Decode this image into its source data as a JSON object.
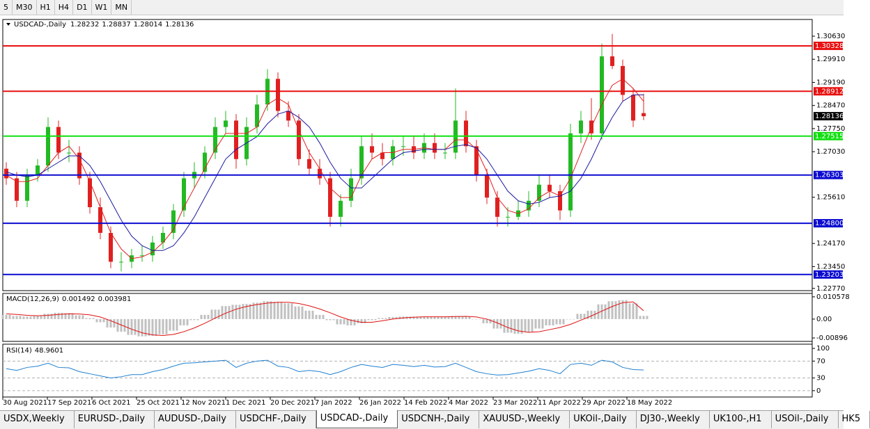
{
  "toolbar": {
    "timeframes": [
      "5",
      "M30",
      "H1",
      "H4",
      "D1",
      "W1",
      "MN"
    ]
  },
  "tabs": [
    "USDX,Weekly",
    "EURUSD-,Daily",
    "AUDUSD-,Daily",
    "USDCHF-,Daily",
    "USDCAD-,Daily",
    "USDCNH-,Daily",
    "XAUUSD-,Weekly",
    "UKOil-,Daily",
    "DJ30-,Weekly",
    "UK100-,H1",
    "USOil-,Daily",
    "HK5"
  ],
  "active_tab": 4,
  "chart_data": [
    {
      "type": "candlestick",
      "title": "USDCAD-,Daily",
      "header_values": [
        1.28232,
        1.28837,
        1.28014,
        1.28136
      ],
      "date_labels": [
        "30 Aug 2021",
        "17 Sep 2021",
        "6 Oct 2021",
        "25 Oct 2021",
        "12 Nov 2021",
        "1 Dec 2021",
        "20 Dec 2021",
        "7 Jan 2022",
        "26 Jan 2022",
        "14 Feb 2022",
        "4 Mar 2022",
        "23 Mar 2022",
        "11 Apr 2022",
        "29 Apr 2022",
        "18 May 2022"
      ],
      "up_color": "#22b922",
      "down_color": "#e02020",
      "open": [
        1.265,
        1.262,
        1.255,
        1.263,
        1.266,
        1.278,
        1.27,
        1.27,
        1.262,
        1.253,
        1.245,
        1.236,
        1.236,
        1.238,
        1.238,
        1.242,
        1.245,
        1.252,
        1.262,
        1.264,
        1.27,
        1.278,
        1.28,
        1.268,
        1.278,
        1.285,
        1.293,
        1.283,
        1.28,
        1.268,
        1.265,
        1.262,
        1.25,
        1.255,
        1.262,
        1.272,
        1.27,
        1.268,
        1.272,
        1.272,
        1.27,
        1.273,
        1.27,
        1.27,
        1.28,
        1.272,
        1.263,
        1.256,
        1.25,
        1.25,
        1.252,
        1.255,
        1.26,
        1.258,
        1.252,
        1.276,
        1.28,
        1.276,
        1.3,
        1.297,
        1.288,
        1.28232
      ],
      "high": [
        1.267,
        1.264,
        1.265,
        1.268,
        1.281,
        1.28,
        1.274,
        1.272,
        1.264,
        1.256,
        1.247,
        1.239,
        1.24,
        1.241,
        1.244,
        1.247,
        1.254,
        1.264,
        1.267,
        1.272,
        1.281,
        1.283,
        1.282,
        1.281,
        1.288,
        1.296,
        1.295,
        1.286,
        1.282,
        1.271,
        1.268,
        1.264,
        1.257,
        1.265,
        1.275,
        1.276,
        1.273,
        1.274,
        1.275,
        1.275,
        1.276,
        1.276,
        1.273,
        1.29,
        1.283,
        1.274,
        1.265,
        1.258,
        1.253,
        1.255,
        1.258,
        1.263,
        1.263,
        1.26,
        1.279,
        1.283,
        1.287,
        1.304,
        1.307,
        1.299,
        1.29,
        1.28837
      ],
      "low": [
        1.26,
        1.253,
        1.253,
        1.261,
        1.264,
        1.268,
        1.267,
        1.26,
        1.251,
        1.243,
        1.234,
        1.233,
        1.234,
        1.236,
        1.236,
        1.24,
        1.243,
        1.25,
        1.259,
        1.262,
        1.268,
        1.276,
        1.265,
        1.266,
        1.276,
        1.283,
        1.281,
        1.278,
        1.266,
        1.263,
        1.26,
        1.247,
        1.247,
        1.253,
        1.26,
        1.268,
        1.266,
        1.266,
        1.269,
        1.268,
        1.268,
        1.268,
        1.268,
        1.268,
        1.27,
        1.261,
        1.254,
        1.247,
        1.247,
        1.249,
        1.25,
        1.253,
        1.256,
        1.249,
        1.25,
        1.273,
        1.274,
        1.274,
        1.296,
        1.286,
        1.278,
        1.28014
      ],
      "close": [
        1.262,
        1.255,
        1.263,
        1.266,
        1.278,
        1.27,
        1.27,
        1.262,
        1.253,
        1.245,
        1.236,
        1.236,
        1.238,
        1.238,
        1.242,
        1.245,
        1.252,
        1.262,
        1.264,
        1.27,
        1.278,
        1.28,
        1.268,
        1.278,
        1.285,
        1.293,
        1.283,
        1.28,
        1.268,
        1.265,
        1.262,
        1.25,
        1.255,
        1.262,
        1.272,
        1.27,
        1.268,
        1.272,
        1.272,
        1.27,
        1.273,
        1.27,
        1.27,
        1.28,
        1.272,
        1.263,
        1.256,
        1.25,
        1.25,
        1.252,
        1.255,
        1.26,
        1.258,
        1.252,
        1.276,
        1.28,
        1.276,
        1.3,
        1.297,
        1.288,
        1.28,
        1.28136
      ],
      "series": [
        {
          "color": "#e02020",
          "values": [
            1.263,
            1.261,
            1.261,
            1.262,
            1.266,
            1.27,
            1.272,
            1.268,
            1.261,
            1.253,
            1.245,
            1.24,
            1.237,
            1.2375,
            1.239,
            1.242,
            1.246,
            1.253,
            1.259,
            1.265,
            1.271,
            1.276,
            1.276,
            1.276,
            1.278,
            1.285,
            1.287,
            1.285,
            1.277,
            1.27,
            1.265,
            1.259,
            1.256,
            1.256,
            1.263,
            1.268,
            1.27,
            1.27,
            1.271,
            1.271,
            1.2715,
            1.271,
            1.271,
            1.274,
            1.274,
            1.271,
            1.264,
            1.256,
            1.252,
            1.251,
            1.2525,
            1.256,
            1.258,
            1.2565,
            1.262,
            1.27,
            1.278,
            1.285,
            1.291,
            1.293,
            1.29,
            1.286
          ]
        },
        {
          "color": "#1a1aa0",
          "values": [
            1.264,
            1.263,
            1.2625,
            1.263,
            1.265,
            1.267,
            1.269,
            1.269,
            1.266,
            1.261,
            1.255,
            1.249,
            1.244,
            1.241,
            1.2395,
            1.2395,
            1.241,
            1.245,
            1.25,
            1.256,
            1.262,
            1.268,
            1.271,
            1.273,
            1.275,
            1.279,
            1.282,
            1.283,
            1.281,
            1.278,
            1.273,
            1.267,
            1.262,
            1.259,
            1.259,
            1.262,
            1.265,
            1.268,
            1.27,
            1.2705,
            1.271,
            1.271,
            1.271,
            1.272,
            1.2725,
            1.2715,
            1.268,
            1.263,
            1.258,
            1.255,
            1.254,
            1.2545,
            1.256,
            1.2565,
            1.258,
            1.262,
            1.268,
            1.275,
            1.281,
            1.286,
            1.288,
            1.288
          ]
        }
      ],
      "levels": [
        {
          "value": 1.30328,
          "color": "#e81010"
        },
        {
          "value": 1.28912,
          "color": "#e81010"
        },
        {
          "value": 1.27515,
          "color": "#10e010"
        },
        {
          "value": 1.26303,
          "color": "#0a0ad0"
        },
        {
          "value": {
            "value": 1.248,
            "label": "1.24800"
          },
          "color": "#0a0ad0"
        },
        {
          "value": 1.23203,
          "color": "#0a0ad0"
        }
      ],
      "last_price": 1.28136,
      "ylim": [
        1.227,
        1.3115
      ],
      "yticks": [
        {
          "value": 1.3063,
          "label": "1.30630"
        },
        {
          "value": 1.2991,
          "label": "1.29910"
        },
        {
          "value": 1.2919,
          "label": "1.29190"
        },
        {
          "value": 1.2847,
          "label": "1.28470"
        },
        {
          "value": 1.2775,
          "label": "1.27750"
        },
        {
          "value": 1.2703,
          "label": "1.27030"
        },
        {
          "value": 1.2561,
          "label": "1.25610"
        },
        {
          "value": 1.2417,
          "label": "1.24170"
        },
        {
          "value": 1.2345,
          "label": "1.23450"
        },
        {
          "value": 1.2277,
          "label": "1.22770"
        }
      ]
    },
    {
      "type": "macd",
      "title": "MACD(12,26,9)",
      "readout": [
        0.001492,
        0.003981
      ],
      "series": [
        {
          "color": "#c0c0c0",
          "values": [
            0.002,
            0.0015,
            0.0012,
            0.0015,
            0.0025,
            0.003,
            0.0028,
            0.0018,
            0.0005,
            -0.0015,
            -0.004,
            -0.006,
            -0.0075,
            -0.0082,
            -0.008,
            -0.0072,
            -0.0055,
            -0.003,
            -0.0005,
            0.002,
            0.0045,
            0.0062,
            0.0068,
            0.0072,
            0.0078,
            0.0085,
            0.0082,
            0.0075,
            0.006,
            0.004,
            0.002,
            -0.0005,
            -0.0025,
            -0.003,
            -0.002,
            -0.0005,
            0.0005,
            0.001,
            0.0012,
            0.0012,
            0.0012,
            0.001,
            0.001,
            0.0015,
            0.0012,
            0.0,
            -0.002,
            -0.0045,
            -0.0065,
            -0.007,
            -0.0062,
            -0.0045,
            -0.003,
            -0.0025,
            0.0,
            0.0025,
            0.004,
            0.007,
            0.0085,
            0.009,
            0.0075,
            0.0015
          ]
        },
        {
          "color": "#e01010",
          "values": [
            0.0025,
            0.0022,
            0.0018,
            0.0016,
            0.0018,
            0.0022,
            0.0025,
            0.0024,
            0.002,
            0.001,
            -0.0008,
            -0.0028,
            -0.0048,
            -0.0065,
            -0.0075,
            -0.0078,
            -0.0073,
            -0.006,
            -0.0042,
            -0.002,
            0.0005,
            0.0028,
            0.0047,
            0.006,
            0.0069,
            0.0076,
            0.008,
            0.008,
            0.0074,
            0.0063,
            0.0048,
            0.003,
            0.001,
            -0.0006,
            -0.0015,
            -0.0015,
            -0.0008,
            0.0,
            0.0006,
            0.0009,
            0.0011,
            0.0011,
            0.0011,
            0.0012,
            0.0013,
            0.001,
            0.0,
            -0.0018,
            -0.004,
            -0.0056,
            -0.0063,
            -0.006,
            -0.005,
            -0.004,
            -0.0025,
            -0.0005,
            0.0015,
            0.0038,
            0.006,
            0.0078,
            0.0082,
            0.004
          ]
        }
      ],
      "ylim": [
        -0.0106,
        0.0122
      ],
      "yticks": [
        0.010578,
        {
          "value": 0,
          "label": "0.00"
        },
        -0.00896
      ]
    },
    {
      "type": "rsi",
      "title": "RSI(14)",
      "readout": 48.9601,
      "color": "#1e7fd0",
      "values": [
        52,
        48,
        55,
        58,
        65,
        55,
        54,
        45,
        40,
        35,
        30,
        33,
        38,
        38,
        45,
        50,
        58,
        65,
        66,
        68,
        70,
        72,
        55,
        65,
        70,
        72,
        58,
        55,
        45,
        48,
        45,
        38,
        45,
        55,
        62,
        58,
        55,
        62,
        60,
        57,
        60,
        56,
        57,
        65,
        55,
        45,
        40,
        37,
        38,
        42,
        46,
        52,
        48,
        40,
        62,
        65,
        60,
        72,
        68,
        55,
        50,
        48.9601
      ],
      "ylim": [
        -15,
        110
      ],
      "yticks": [
        100,
        70,
        30,
        0
      ]
    }
  ]
}
